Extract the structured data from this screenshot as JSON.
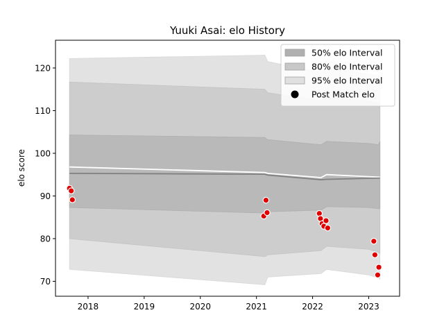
{
  "chart_data": {
    "type": "area",
    "title": "Yuuki Asai: elo History",
    "xlabel": "",
    "ylabel": "elo score",
    "xlim": [
      2017.42,
      2023.55
    ],
    "ylim": [
      66.5,
      126.5
    ],
    "x_ticks": [
      2018,
      2019,
      2020,
      2021,
      2022,
      2023
    ],
    "y_ticks": [
      70,
      80,
      90,
      100,
      110,
      120
    ],
    "grid": false,
    "legend_position": "top-right",
    "legend": [
      {
        "label": "50% elo Interval",
        "kind": "patch",
        "color": "#b0b0b0"
      },
      {
        "label": "80% elo Interval",
        "kind": "patch",
        "color": "#c8c8c8"
      },
      {
        "label": "95% elo Interval",
        "kind": "patch",
        "color": "#e0e0e0"
      },
      {
        "label": "Post Match elo",
        "kind": "marker",
        "color": "#000000"
      }
    ],
    "colors": {
      "band50": "#b9b9b9",
      "band80": "#cdcdcd",
      "band95": "#e2e2e2",
      "mean_line": "#808080",
      "upper_line": "#ffffff",
      "points": "#e00000"
    },
    "bands": {
      "x": [
        2017.67,
        2021.15,
        2021.2,
        2022.15,
        2022.25,
        2023.0,
        2023.17,
        2023.2
      ],
      "b95_low": [
        72.8,
        69.2,
        71.0,
        71.8,
        72.8,
        71.5,
        70.8,
        70.5
      ],
      "b80_low": [
        80.0,
        75.8,
        76.2,
        77.2,
        78.2,
        77.5,
        76.8,
        76.5
      ],
      "b50_low": [
        87.3,
        86.0,
        86.3,
        86.7,
        87.5,
        87.3,
        87.0,
        87.0
      ],
      "b50_high": [
        104.3,
        103.7,
        103.2,
        102.0,
        102.8,
        102.3,
        102.0,
        102.7
      ],
      "b80_high": [
        116.7,
        115.0,
        114.2,
        112.3,
        113.0,
        112.3,
        111.7,
        111.6
      ],
      "b95_high": [
        122.2,
        123.0,
        121.5,
        119.0,
        119.8,
        118.7,
        118.2,
        118.0
      ]
    },
    "mean_series": {
      "x": [
        2017.67,
        2021.15,
        2021.2,
        2022.15,
        2022.25,
        2023.2
      ],
      "y": [
        95.3,
        95.1,
        94.9,
        93.8,
        93.9,
        94.2
      ]
    },
    "upper_series": {
      "x": [
        2017.67,
        2021.15,
        2021.2,
        2022.15,
        2022.25,
        2023.2
      ],
      "y": [
        96.8,
        95.5,
        95.3,
        94.3,
        95.0,
        94.4
      ]
    },
    "points": [
      {
        "x": 2017.67,
        "y": 91.8
      },
      {
        "x": 2017.7,
        "y": 91.2
      },
      {
        "x": 2017.72,
        "y": 89.1
      },
      {
        "x": 2021.13,
        "y": 85.3
      },
      {
        "x": 2021.17,
        "y": 89.0
      },
      {
        "x": 2021.19,
        "y": 86.1
      },
      {
        "x": 2022.12,
        "y": 85.9
      },
      {
        "x": 2022.14,
        "y": 84.7
      },
      {
        "x": 2022.17,
        "y": 83.5
      },
      {
        "x": 2022.2,
        "y": 82.9
      },
      {
        "x": 2022.24,
        "y": 84.2
      },
      {
        "x": 2022.27,
        "y": 82.5
      },
      {
        "x": 2023.09,
        "y": 79.4
      },
      {
        "x": 2023.11,
        "y": 76.2
      },
      {
        "x": 2023.16,
        "y": 71.5
      },
      {
        "x": 2023.18,
        "y": 73.3
      }
    ]
  }
}
